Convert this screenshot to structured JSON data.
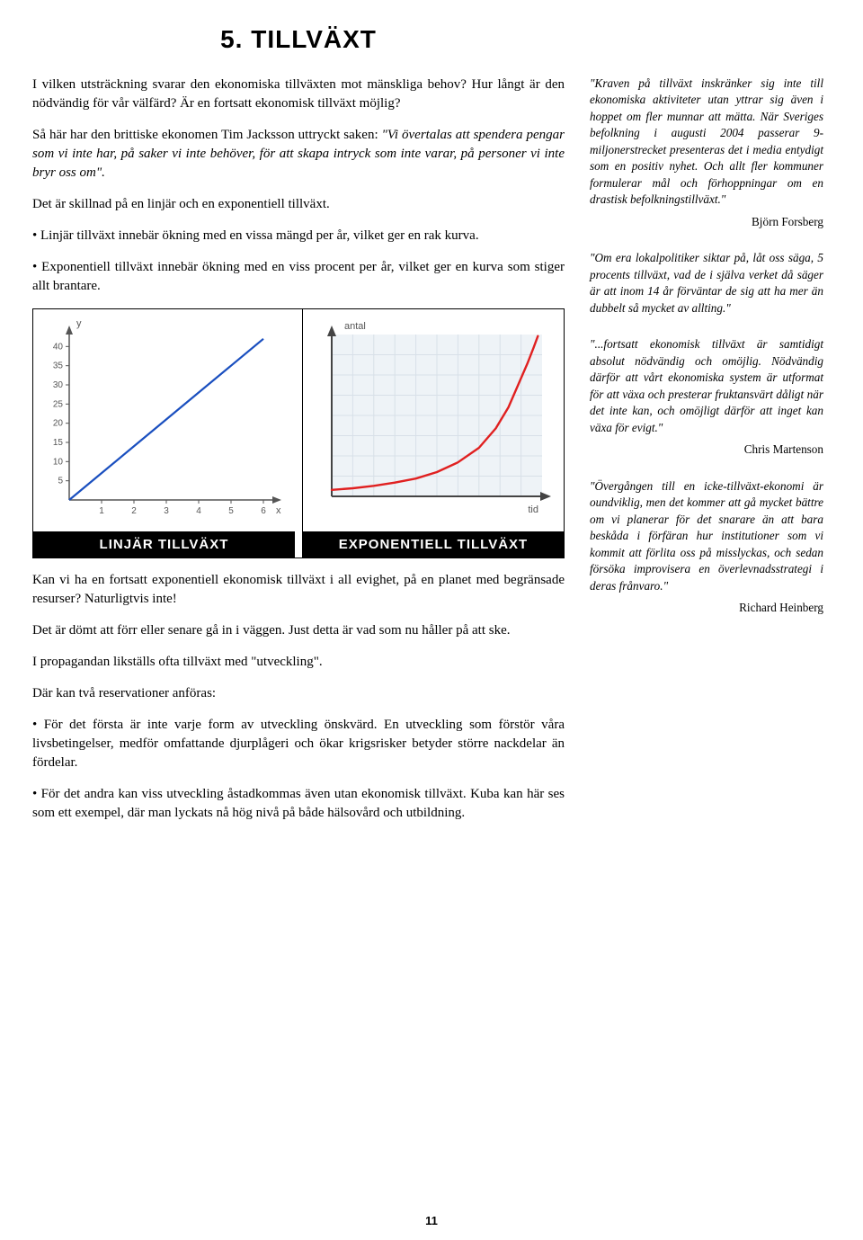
{
  "title": "5. TILLVÄXT",
  "page_number": "11",
  "main": {
    "p1": "I vilken utsträckning svarar den ekonomiska tillväxten mot mänskliga behov? Hur långt är den nödvändig för vår välfärd? Är en fortsatt ekonomisk tillväxt möjlig?",
    "p2_lead": "Så här har den brittiske ekonomen Tim Jacksson uttryckt saken: ",
    "p2_quote": "\"Vi övertalas att spendera pengar som vi inte har, på saker vi inte behöver, för att skapa intryck som inte varar, på personer vi inte bryr oss om\".",
    "p3": "Det är skillnad på en linjär och en exponentiell tillväxt.",
    "b1": "• Linjär tillväxt innebär ökning med en vissa mängd per år, vilket ger en rak kurva.",
    "b2": "• Exponentiell tillväxt innebär ökning med en viss procent per år, vilket ger en kurva som stiger allt brantare.",
    "after1": "Kan vi ha en fortsatt exponentiell ekonomisk tillväxt i all evighet, på en planet med begränsade resurser? Naturligtvis inte!",
    "after2": "Det är dömt att förr eller senare gå in i väggen. Just detta är vad som nu håller på att ske.",
    "after3": "I propagandan likställs ofta tillväxt med \"utveckling\".",
    "after4": "Där kan två reservationer anföras:",
    "b3": "• För det första är inte varje form av utveckling önskvärd. En utveckling som förstör våra livsbetingelser, medför omfattande djurplågeri och ökar krigsrisker betyder större nackdelar än fördelar.",
    "b4": "• För det andra kan viss utveckling åstadkommas även utan ekonomisk tillväxt. Kuba kan här ses som ett exempel, där man lyckats nå hög nivå på både hälsovård och utbildning."
  },
  "side": {
    "q1": "\"Kraven på tillväxt inskränker sig inte till ekonomiska aktiviteter utan yttrar sig även i hoppet om fler munnar att mätta. När Sveriges befolkning i augusti 2004 passerar 9-miljonerstrecket presenteras det i media entydigt som en positiv nyhet. Och allt fler kommuner formulerar mål och förhoppningar om en drastisk befolkningstillväxt.\"",
    "a1": "Björn Forsberg",
    "q2": "\"Om era lokalpolitiker siktar på, låt oss säga, 5 procents tillväxt, vad de i själva verket då säger är att inom 14 år förväntar de sig att ha mer än dubbelt så mycket av allting.\"",
    "q3": "\"...fortsatt ekonomisk tillväxt är samtidigt absolut nödvändig och omöjlig. Nödvändig därför att vårt ekonomiska system är utformat för att växa och presterar fruktansvärt dåligt när det inte kan, och omöjligt därför att inget kan växa för evigt.\"",
    "a3": "Chris Martenson",
    "q4": "\"Övergången till en icke-tillväxt-ekonomi är oundviklig, men det kommer att gå mycket bättre om vi planerar för det snarare än att bara beskåda i förfäran hur institutioner som vi kommit att förlita oss på misslyckas, och sedan försöka improvisera en överlevnadsstrategi i deras frånvaro.\"",
    "a4": "Richard Heinberg"
  },
  "chart_linear": {
    "type": "line",
    "caption": "LINJÄR TILLVÄXT",
    "y_axis_label": "y",
    "x_axis_label": "x",
    "x_ticks": [
      1,
      2,
      3,
      4,
      5,
      6
    ],
    "y_ticks": [
      5,
      10,
      15,
      20,
      25,
      30,
      35,
      40
    ],
    "xlim": [
      0,
      6.5
    ],
    "ylim": [
      0,
      45
    ],
    "line_points_x": [
      0,
      1,
      2,
      3,
      4,
      5,
      6
    ],
    "line_points_y": [
      0,
      7,
      14,
      21,
      28,
      35,
      42
    ],
    "line_color": "#1a4fbf",
    "line_width": 2.2,
    "axis_color": "#555555",
    "tick_font_size": 10,
    "background_color": "#ffffff"
  },
  "chart_exp": {
    "type": "line",
    "caption": "EXPONENTIELL TILLVÄXT",
    "y_axis_label": "antal",
    "x_axis_label": "tid",
    "x_ticks": [],
    "y_ticks": [],
    "xlim": [
      0,
      10
    ],
    "ylim": [
      0,
      100
    ],
    "line_points_x": [
      0,
      1,
      2,
      3,
      4,
      5,
      6,
      7,
      7.8,
      8.4,
      8.9,
      9.3,
      9.6,
      9.8
    ],
    "line_points_y": [
      4,
      5,
      6.5,
      8.5,
      11,
      15,
      21,
      30,
      42,
      55,
      70,
      82,
      92,
      99
    ],
    "line_color": "#e02020",
    "line_width": 2.4,
    "axis_color": "#444444",
    "grid_color": "#d8e0e8",
    "grid_x": [
      1,
      2,
      3,
      4,
      5,
      6,
      7,
      8,
      9
    ],
    "grid_y": [
      12.5,
      25,
      37.5,
      50,
      62.5,
      75,
      87.5
    ],
    "tick_font_size": 11,
    "background_color": "#eef3f7"
  }
}
